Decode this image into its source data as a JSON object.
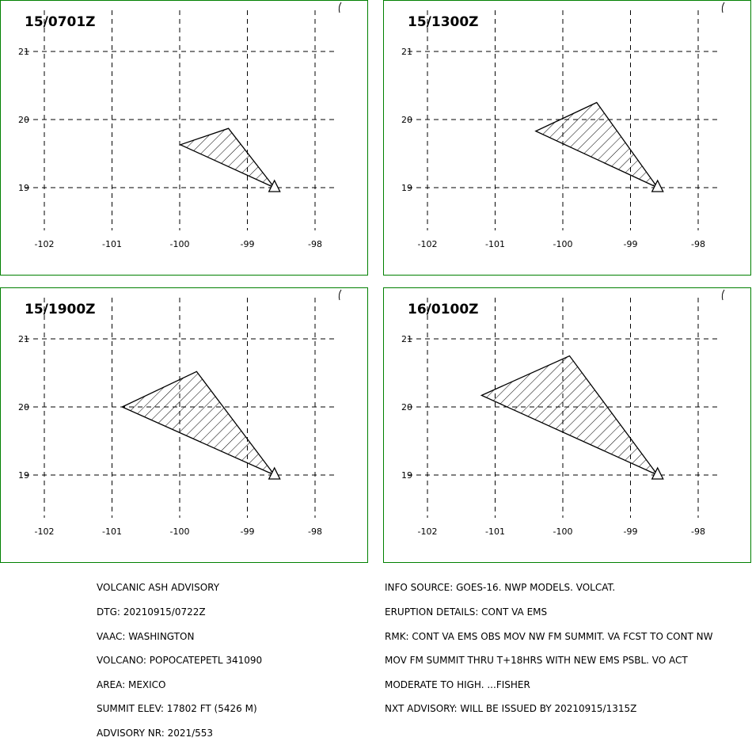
{
  "colors": {
    "border": "#008000",
    "grid": "#000000",
    "ash_outline": "#000000",
    "hatch": "#000000"
  },
  "axes": {
    "lon_ticks": [
      -102,
      -101,
      -100,
      -99,
      -98
    ],
    "lat_ticks": [
      19,
      20,
      21
    ],
    "lon_labels": [
      "-102",
      "-101",
      "-100",
      "-99",
      "-98"
    ],
    "lat_labels": [
      "19",
      "20",
      "21"
    ]
  },
  "volcano": {
    "lon": -98.6,
    "lat": 19.0,
    "symbol": "triangle"
  },
  "panels": [
    {
      "title": "15/0701Z",
      "ash_polygon": [
        [
          -98.6,
          19.0
        ],
        [
          -99.99,
          19.63
        ],
        [
          -99.28,
          19.87
        ]
      ]
    },
    {
      "title": "15/1300Z",
      "ash_polygon": [
        [
          -98.6,
          19.0
        ],
        [
          -100.4,
          19.83
        ],
        [
          -99.5,
          20.25
        ]
      ]
    },
    {
      "title": "15/1900Z",
      "ash_polygon": [
        [
          -98.6,
          19.0
        ],
        [
          -100.85,
          20.0
        ],
        [
          -99.75,
          20.52
        ]
      ]
    },
    {
      "title": "16/0100Z",
      "ash_polygon": [
        [
          -98.6,
          19.0
        ],
        [
          -101.2,
          20.17
        ],
        [
          -99.9,
          20.75
        ]
      ]
    }
  ],
  "advisory_left": [
    "VOLCANIC ASH ADVISORY",
    "DTG: 20210915/0722Z",
    "VAAC: WASHINGTON",
    "VOLCANO: POPOCATEPETL 341090",
    "AREA: MEXICO",
    "SUMMIT ELEV: 17802 FT (5426 M)",
    "ADVISORY NR: 2021/553"
  ],
  "advisory_right": [
    "INFO SOURCE: GOES-16. NWP MODELS. VOLCAT.",
    "ERUPTION DETAILS: CONT VA EMS",
    "RMK: CONT VA EMS OBS MOV NW FM SUMMIT. VA FCST TO CONT NW",
    "MOV FM SUMMIT THRU T+18HRS WITH NEW EMS PSBL. VO ACT",
    "MODERATE TO HIGH. ...FISHER",
    "NXT ADVISORY: WILL BE ISSUED BY 20210915/1315Z"
  ]
}
